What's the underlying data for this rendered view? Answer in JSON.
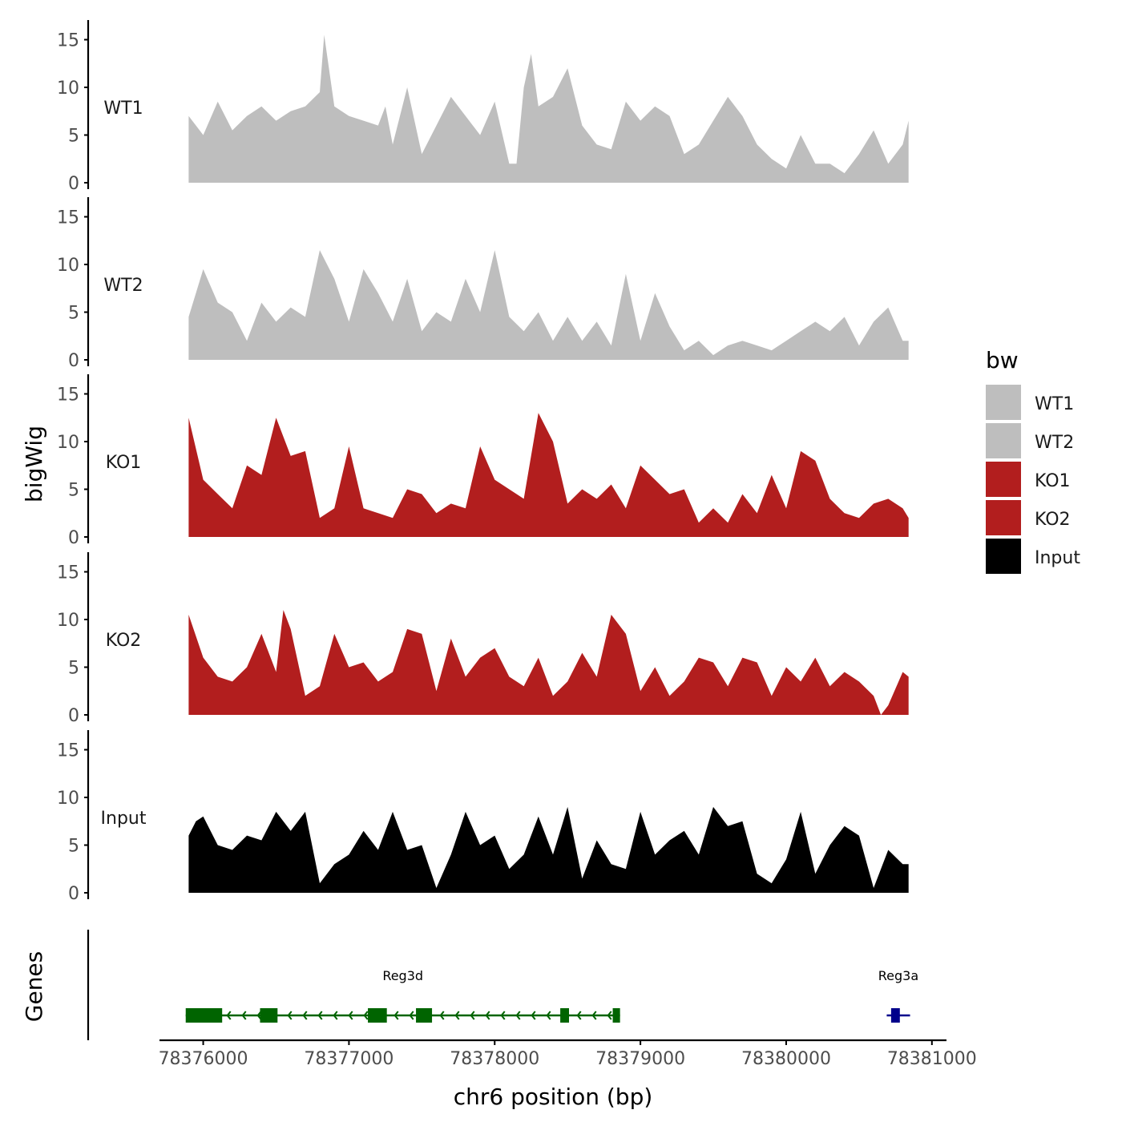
{
  "colors": {
    "wt": "#bebebe",
    "ko": "#b21e1e",
    "input": "#000000",
    "gene_reg3d": "#006400",
    "gene_reg3a": "#00008b",
    "axis": "#000000",
    "tick_text": "#4d4d4d"
  },
  "chart_data": {
    "type": "area",
    "title": "",
    "ylabel": "bigWig",
    "xlabel": "chr6 position (bp)",
    "genes_label": "Genes",
    "xlim": [
      78375700,
      78381100
    ],
    "ylim": [
      0,
      16
    ],
    "x_ticks": [
      78376000,
      78377000,
      78378000,
      78379000,
      78380000,
      78381000
    ],
    "x_tick_labels": [
      "78376000",
      "78377000",
      "78378000",
      "78379000",
      "78380000",
      "78381000"
    ],
    "y_ticks": [
      0,
      5,
      10,
      15
    ],
    "y_tick_labels": [
      "0",
      "5",
      "10",
      "15"
    ],
    "legend": {
      "title": "bw",
      "position": "right",
      "entries": [
        {
          "label": "WT1",
          "color": "#bebebe"
        },
        {
          "label": "WT2",
          "color": "#bebebe"
        },
        {
          "label": "KO1",
          "color": "#b21e1e"
        },
        {
          "label": "KO2",
          "color": "#b21e1e"
        },
        {
          "label": "Input",
          "color": "#000000"
        }
      ]
    },
    "tracks": [
      {
        "name": "WT1",
        "color": "#bebebe",
        "x": [
          78375900,
          78376000,
          78376100,
          78376200,
          78376300,
          78376400,
          78376500,
          78376600,
          78376700,
          78376800,
          78376830,
          78376900,
          78377000,
          78377100,
          78377200,
          78377250,
          78377300,
          78377400,
          78377500,
          78377600,
          78377700,
          78377800,
          78377900,
          78378000,
          78378100,
          78378150,
          78378200,
          78378250,
          78378300,
          78378400,
          78378500,
          78378600,
          78378700,
          78378800,
          78378900,
          78379000,
          78379100,
          78379200,
          78379300,
          78379400,
          78379500,
          78379600,
          78379700,
          78379800,
          78379900,
          78380000,
          78380100,
          78380200,
          78380300,
          78380400,
          78380500,
          78380600,
          78380700,
          78380800,
          78380840
        ],
        "y": [
          7.0,
          5.0,
          8.5,
          5.5,
          7.0,
          8.0,
          6.5,
          7.5,
          8.0,
          9.5,
          15.5,
          8.0,
          7.0,
          6.5,
          6.0,
          8.0,
          4.0,
          10.0,
          3.0,
          6.0,
          9.0,
          7.0,
          5.0,
          8.5,
          2.0,
          2.0,
          10.0,
          13.5,
          8.0,
          9.0,
          12.0,
          6.0,
          4.0,
          3.5,
          8.5,
          6.5,
          8.0,
          7.0,
          3.0,
          4.0,
          6.5,
          9.0,
          7.0,
          4.0,
          2.5,
          1.5,
          5.0,
          2.0,
          2.0,
          1.0,
          3.0,
          5.5,
          2.0,
          4.0,
          6.5
        ]
      },
      {
        "name": "WT2",
        "color": "#bebebe",
        "x": [
          78375900,
          78376000,
          78376100,
          78376200,
          78376300,
          78376400,
          78376500,
          78376600,
          78376700,
          78376800,
          78376900,
          78377000,
          78377100,
          78377200,
          78377300,
          78377400,
          78377500,
          78377600,
          78377700,
          78377800,
          78377900,
          78378000,
          78378100,
          78378200,
          78378300,
          78378400,
          78378500,
          78378600,
          78378700,
          78378800,
          78378900,
          78379000,
          78379100,
          78379200,
          78379300,
          78379400,
          78379500,
          78379600,
          78379700,
          78379800,
          78379900,
          78380000,
          78380100,
          78380200,
          78380300,
          78380400,
          78380500,
          78380600,
          78380700,
          78380800,
          78380840
        ],
        "y": [
          4.5,
          9.5,
          6.0,
          5.0,
          2.0,
          6.0,
          4.0,
          5.5,
          4.5,
          11.5,
          8.5,
          4.0,
          9.5,
          7.0,
          4.0,
          8.5,
          3.0,
          5.0,
          4.0,
          8.5,
          5.0,
          11.5,
          4.5,
          3.0,
          5.0,
          2.0,
          4.5,
          2.0,
          4.0,
          1.5,
          9.0,
          2.0,
          7.0,
          3.5,
          1.0,
          2.0,
          0.5,
          1.5,
          2.0,
          1.5,
          1.0,
          2.0,
          3.0,
          4.0,
          3.0,
          4.5,
          1.5,
          4.0,
          5.5,
          2.0,
          2.0
        ]
      },
      {
        "name": "KO1",
        "color": "#b21e1e",
        "x": [
          78375900,
          78376000,
          78376100,
          78376200,
          78376300,
          78376400,
          78376500,
          78376600,
          78376700,
          78376800,
          78376900,
          78377000,
          78377100,
          78377200,
          78377300,
          78377400,
          78377500,
          78377600,
          78377700,
          78377800,
          78377900,
          78378000,
          78378100,
          78378200,
          78378300,
          78378400,
          78378500,
          78378600,
          78378700,
          78378800,
          78378900,
          78379000,
          78379100,
          78379200,
          78379300,
          78379400,
          78379500,
          78379600,
          78379700,
          78379800,
          78379900,
          78380000,
          78380100,
          78380200,
          78380300,
          78380400,
          78380500,
          78380600,
          78380700,
          78380800,
          78380840
        ],
        "y": [
          12.5,
          6.0,
          4.5,
          3.0,
          7.5,
          6.5,
          12.5,
          8.5,
          9.0,
          2.0,
          3.0,
          9.5,
          3.0,
          2.5,
          2.0,
          5.0,
          4.5,
          2.5,
          3.5,
          3.0,
          9.5,
          6.0,
          5.0,
          4.0,
          13.0,
          10.0,
          3.5,
          5.0,
          4.0,
          5.5,
          3.0,
          7.5,
          6.0,
          4.5,
          5.0,
          1.5,
          3.0,
          1.5,
          4.5,
          2.5,
          6.5,
          3.0,
          9.0,
          8.0,
          4.0,
          2.5,
          2.0,
          3.5,
          4.0,
          3.0,
          2.0
        ]
      },
      {
        "name": "KO2",
        "color": "#b21e1e",
        "x": [
          78375900,
          78376000,
          78376100,
          78376200,
          78376300,
          78376400,
          78376500,
          78376550,
          78376600,
          78376700,
          78376800,
          78376900,
          78377000,
          78377100,
          78377200,
          78377300,
          78377400,
          78377500,
          78377600,
          78377700,
          78377800,
          78377900,
          78378000,
          78378100,
          78378200,
          78378300,
          78378400,
          78378500,
          78378600,
          78378700,
          78378800,
          78378900,
          78379000,
          78379100,
          78379200,
          78379300,
          78379400,
          78379500,
          78379600,
          78379700,
          78379800,
          78379900,
          78380000,
          78380100,
          78380200,
          78380300,
          78380400,
          78380500,
          78380600,
          78380650,
          78380700,
          78380800,
          78380840
        ],
        "y": [
          10.5,
          6.0,
          4.0,
          3.5,
          5.0,
          8.5,
          4.5,
          11.0,
          9.0,
          2.0,
          3.0,
          8.5,
          5.0,
          5.5,
          3.5,
          4.5,
          9.0,
          8.5,
          2.5,
          8.0,
          4.0,
          6.0,
          7.0,
          4.0,
          3.0,
          6.0,
          2.0,
          3.5,
          6.5,
          4.0,
          10.5,
          8.5,
          2.5,
          5.0,
          2.0,
          3.5,
          6.0,
          5.5,
          3.0,
          6.0,
          5.5,
          2.0,
          5.0,
          3.5,
          6.0,
          3.0,
          4.5,
          3.5,
          2.0,
          0.0,
          1.0,
          4.5,
          4.0
        ]
      },
      {
        "name": "Input",
        "color": "#000000",
        "x": [
          78375900,
          78375950,
          78376000,
          78376100,
          78376200,
          78376300,
          78376400,
          78376500,
          78376600,
          78376700,
          78376800,
          78376900,
          78377000,
          78377100,
          78377200,
          78377300,
          78377400,
          78377500,
          78377600,
          78377700,
          78377800,
          78377900,
          78378000,
          78378100,
          78378200,
          78378300,
          78378400,
          78378500,
          78378600,
          78378700,
          78378800,
          78378900,
          78379000,
          78379100,
          78379200,
          78379300,
          78379400,
          78379500,
          78379600,
          78379700,
          78379800,
          78379900,
          78380000,
          78380100,
          78380200,
          78380300,
          78380400,
          78380500,
          78380600,
          78380700,
          78380800,
          78380840
        ],
        "y": [
          6.0,
          7.5,
          8.0,
          5.0,
          4.5,
          6.0,
          5.5,
          8.5,
          6.5,
          8.5,
          1.0,
          3.0,
          4.0,
          6.5,
          4.5,
          8.5,
          4.5,
          5.0,
          0.5,
          4.0,
          8.5,
          5.0,
          6.0,
          2.5,
          4.0,
          8.0,
          4.0,
          9.0,
          1.5,
          5.5,
          3.0,
          2.5,
          8.5,
          4.0,
          5.5,
          6.5,
          4.0,
          9.0,
          7.0,
          7.5,
          2.0,
          1.0,
          3.5,
          8.5,
          2.0,
          5.0,
          7.0,
          6.0,
          0.5,
          4.5,
          3.0,
          3.0
        ]
      }
    ],
    "genes": [
      {
        "name": "Reg3d",
        "strand": "-",
        "color": "#006400",
        "start": 78375880,
        "end": 78378860,
        "exons": [
          [
            78375880,
            78376130
          ],
          [
            78376390,
            78376510
          ],
          [
            78377130,
            78377260
          ],
          [
            78377460,
            78377570
          ],
          [
            78378450,
            78378510
          ],
          [
            78378810,
            78378860
          ]
        ]
      },
      {
        "name": "Reg3a",
        "strand": "+",
        "color": "#00008b",
        "start": 78380690,
        "end": 78380850,
        "exons": [
          [
            78380720,
            78380780
          ]
        ]
      }
    ]
  }
}
